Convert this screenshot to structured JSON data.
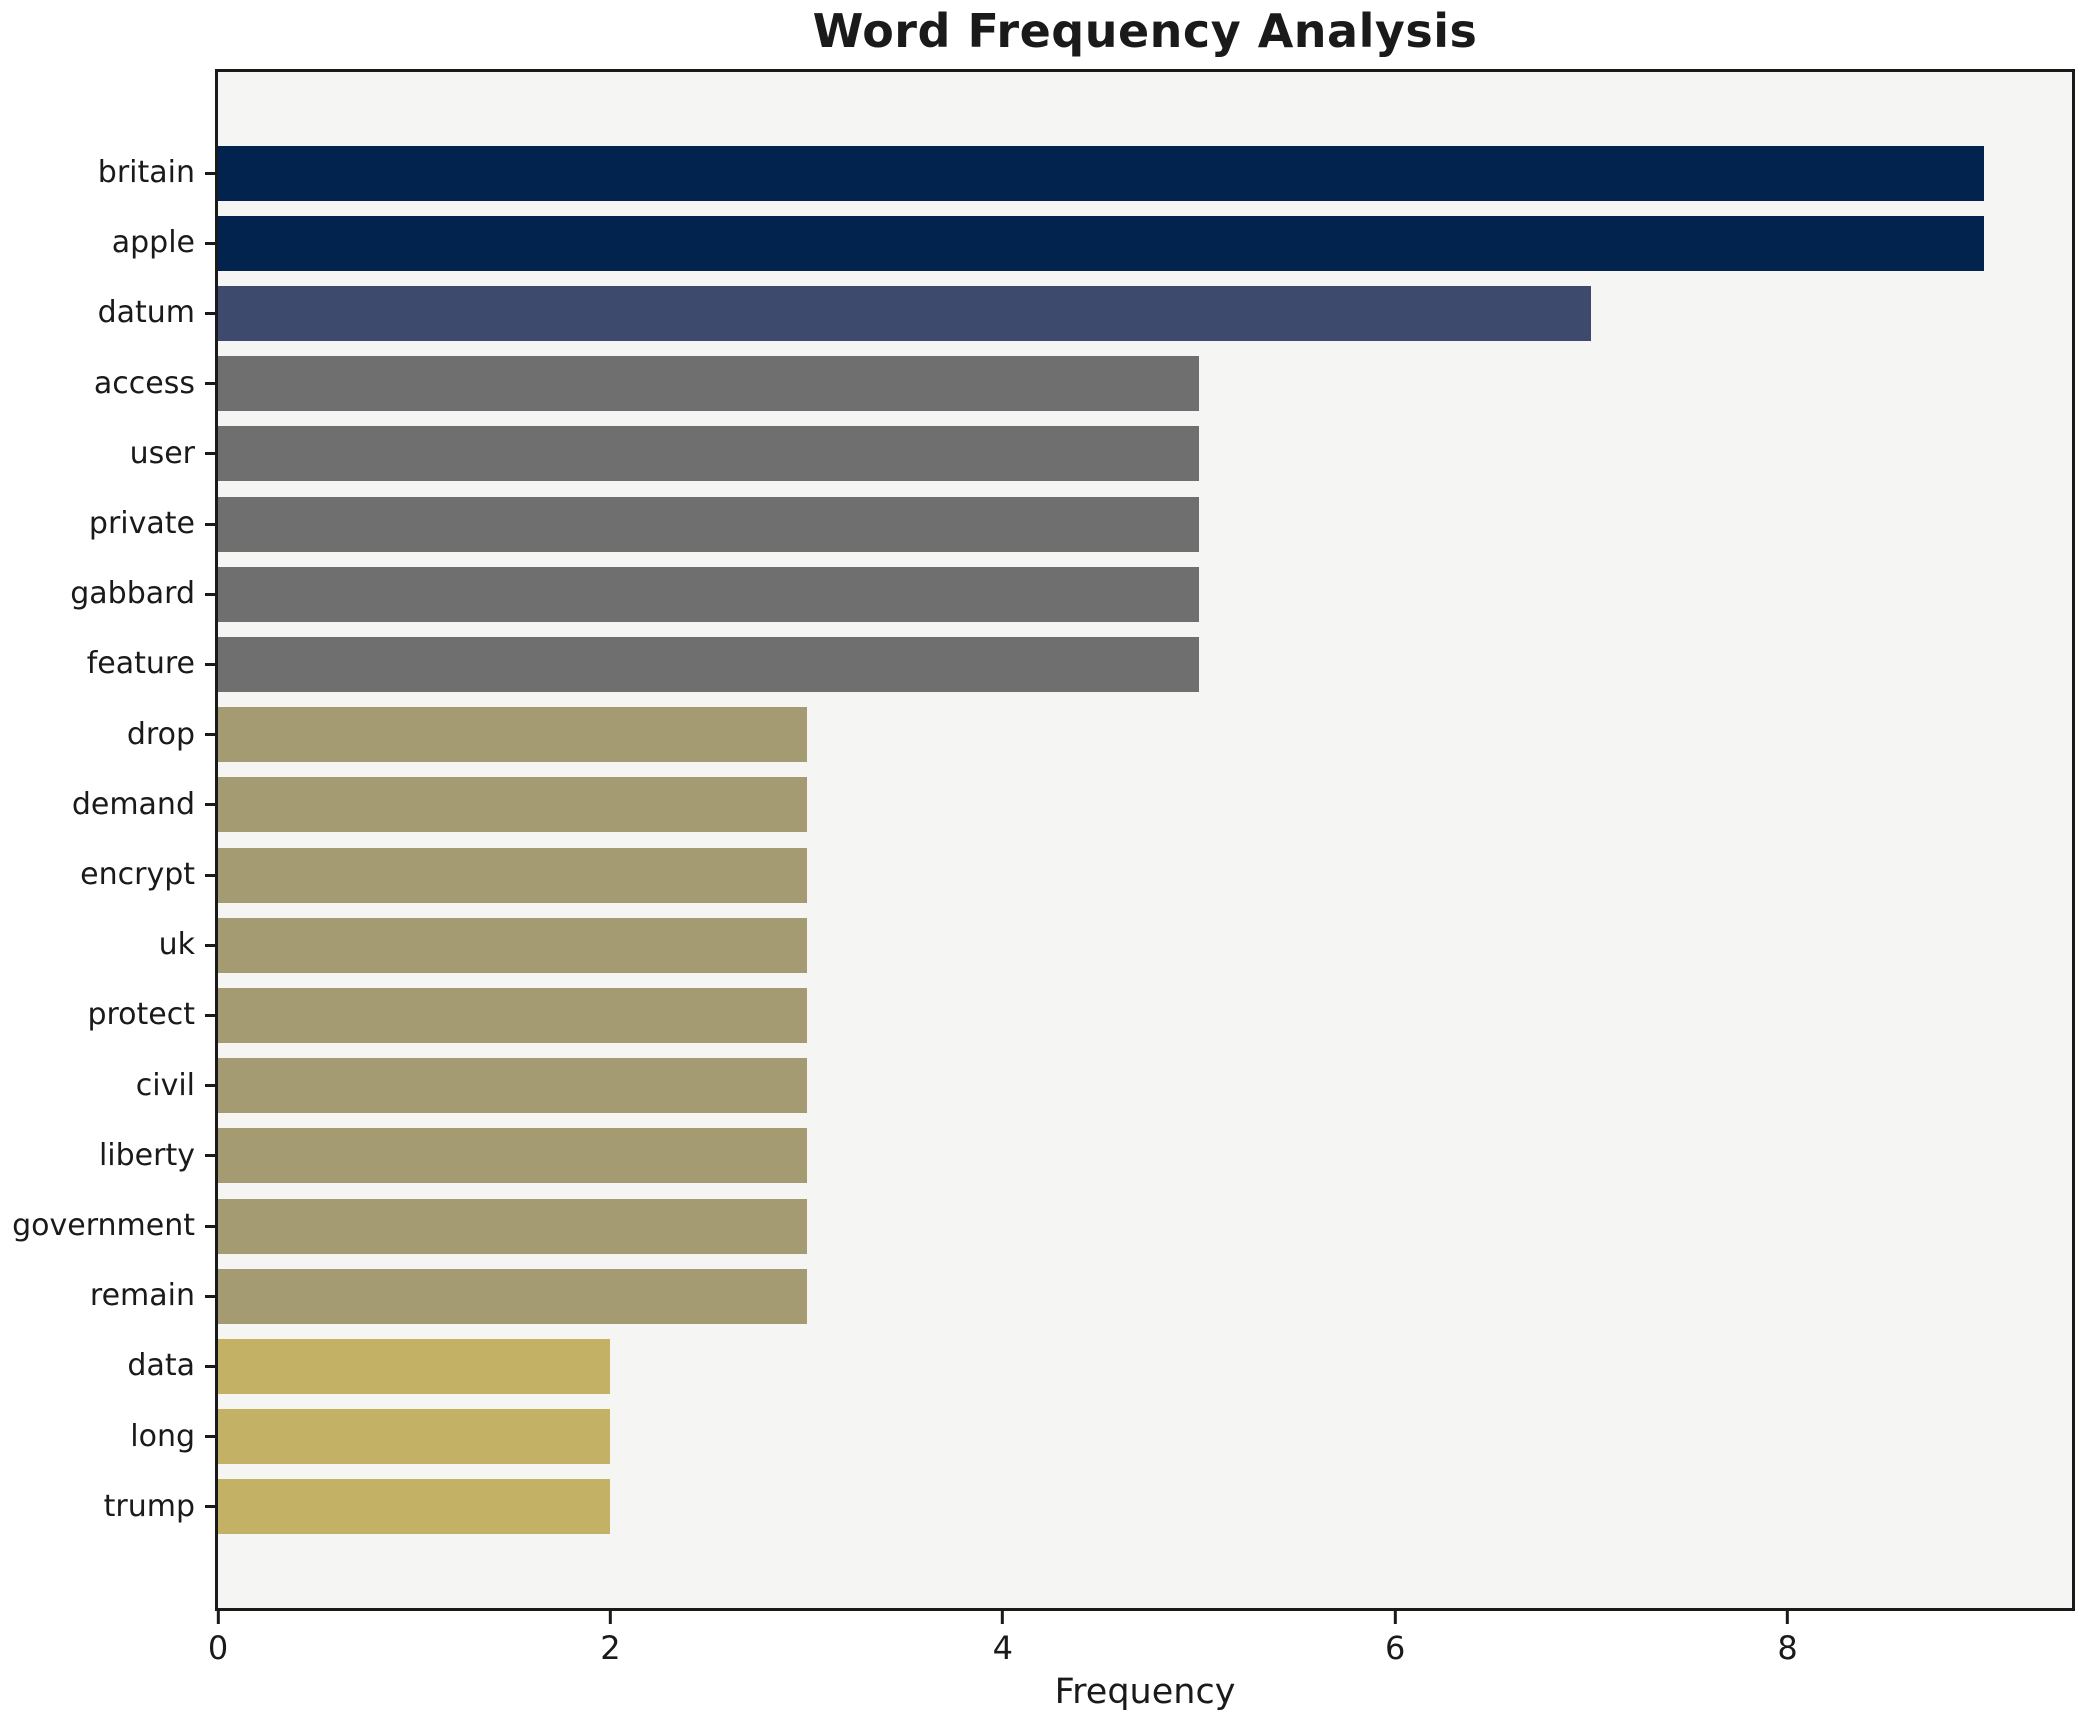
{
  "chart_data": {
    "type": "bar",
    "orientation": "horizontal",
    "title": "Word Frequency Analysis",
    "xlabel": "Frequency",
    "ylabel": "",
    "categories": [
      "britain",
      "apple",
      "datum",
      "access",
      "user",
      "private",
      "gabbard",
      "feature",
      "drop",
      "demand",
      "encrypt",
      "uk",
      "protect",
      "civil",
      "liberty",
      "government",
      "remain",
      "data",
      "long",
      "trump"
    ],
    "values": [
      9,
      9,
      7,
      5,
      5,
      5,
      5,
      5,
      3,
      3,
      3,
      3,
      3,
      3,
      3,
      3,
      3,
      2,
      2,
      2
    ],
    "bar_colors": [
      "#01234e",
      "#01234e",
      "#3d4a6e",
      "#6f6f6f",
      "#6f6f6f",
      "#6f6f6f",
      "#6f6f6f",
      "#6f6f6f",
      "#a49b72",
      "#a49b72",
      "#a49b72",
      "#a49b72",
      "#a49b72",
      "#a49b72",
      "#a49b72",
      "#a49b72",
      "#a49b72",
      "#c3b166",
      "#c3b166",
      "#c3b166"
    ],
    "xlim": [
      0,
      9.45
    ],
    "xticks": [
      0,
      2,
      4,
      6,
      8
    ],
    "grid": false,
    "legend": null,
    "plot_background": "#f5f5f4",
    "figure_background": "#ffffff",
    "spine_color": "#1a1a1a"
  }
}
